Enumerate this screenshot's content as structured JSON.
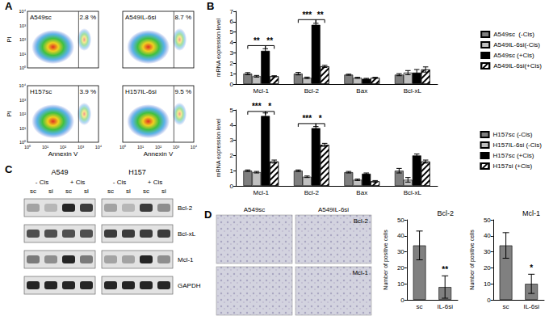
{
  "panel_labels": [
    "A",
    "B",
    "C",
    "D"
  ],
  "flow_cytometry": {
    "x_label": "Annexin V",
    "y_label": "PI",
    "tick_labels": [
      "10⁰",
      "10¹",
      "10²",
      "10³",
      "10⁴"
    ],
    "plots": [
      {
        "name": "A549sc",
        "percent": "2.8 %"
      },
      {
        "name": "A549IL-6si",
        "percent": "8.7 %"
      },
      {
        "name": "H157sc",
        "percent": "3.9 %"
      },
      {
        "name": "H157IL-6si",
        "percent": "9.5 %"
      }
    ]
  },
  "chart_data": [
    {
      "type": "bar",
      "y_label": "mRNA expression level",
      "categories": [
        "Mcl-1",
        "Bcl-2",
        "Bax",
        "Bcl-xL"
      ],
      "series": [
        {
          "name": "A549sc  (-Cis)",
          "color": "#7f7f7f",
          "values": [
            1.0,
            1.0,
            0.9,
            0.9
          ],
          "errors": [
            0.1,
            0.12,
            0.05,
            0.1
          ]
        },
        {
          "name": "A549IL-6si(-Cis)",
          "color": "#c0c0c0",
          "values": [
            0.75,
            0.6,
            0.6,
            1.1
          ],
          "errors": [
            0.08,
            0.07,
            0.05,
            0.2
          ]
        },
        {
          "name": "A549sc (+Cis)",
          "color": "#000000",
          "values": [
            3.2,
            5.7,
            0.5,
            1.1
          ],
          "errors": [
            0.2,
            0.15,
            0.05,
            0.3
          ]
        },
        {
          "name": "A549IL-6si(+Cis)",
          "color": "#ffffff",
          "values": [
            0.75,
            1.7,
            0.6,
            1.4
          ],
          "errors": [
            0.05,
            0.1,
            0.05,
            0.25
          ]
        }
      ],
      "ylim": [
        0,
        7
      ],
      "yticks": [
        0,
        1,
        2,
        3,
        4,
        5,
        6,
        7
      ],
      "grid": false,
      "legend": "right",
      "annotations": [
        {
          "category": "Mcl-1",
          "from": "A549sc  (-Cis)",
          "to": "A549sc (+Cis)",
          "y": 3.7,
          "text": "**"
        },
        {
          "category": "Mcl-1",
          "from": "A549sc (+Cis)",
          "to": "A549IL-6si(+Cis)",
          "y": 3.7,
          "text": "**"
        },
        {
          "category": "Bcl-2",
          "from": "A549sc  (-Cis)",
          "to": "A549sc (+Cis)",
          "y": 6.2,
          "text": "***"
        },
        {
          "category": "Bcl-2",
          "from": "A549sc (+Cis)",
          "to": "A549IL-6si(+Cis)",
          "y": 6.2,
          "text": "**"
        }
      ]
    },
    {
      "type": "bar",
      "y_label": "mRNA expression level",
      "categories": [
        "Mcl-1",
        "Bcl-2",
        "Bax",
        "Bcl-xL"
      ],
      "series": [
        {
          "name": "H157sc (-Cis)",
          "color": "#7f7f7f",
          "values": [
            1.0,
            1.0,
            0.9,
            1.0
          ],
          "errors": [
            0.05,
            0.05,
            0.05,
            0.15
          ]
        },
        {
          "name": "H157IL-6si (-Cis)",
          "color": "#c0c0c0",
          "values": [
            0.9,
            0.6,
            0.4,
            0.4
          ],
          "errors": [
            0.05,
            0.05,
            0.05,
            0.15
          ]
        },
        {
          "name": "H157sc (+Cis)",
          "color": "#000000",
          "values": [
            4.6,
            3.8,
            0.8,
            2.0
          ],
          "errors": [
            0.2,
            0.1,
            0.05,
            0.1
          ]
        },
        {
          "name": "H157si (+Cis)",
          "color": "#ffffff",
          "values": [
            1.6,
            2.7,
            0.3,
            1.6
          ],
          "errors": [
            0.1,
            0.1,
            0.05,
            0.1
          ]
        }
      ],
      "ylim": [
        0,
        5
      ],
      "yticks": [
        0,
        1,
        2,
        3,
        4,
        5
      ],
      "grid": false,
      "legend": "right",
      "annotations": [
        {
          "category": "Mcl-1",
          "from": "H157sc (-Cis)",
          "to": "H157sc (+Cis)",
          "y": 4.9,
          "text": "***"
        },
        {
          "category": "Mcl-1",
          "from": "H157sc (+Cis)",
          "to": "H157si (+Cis)",
          "y": 4.9,
          "text": "*"
        },
        {
          "category": "Bcl-2",
          "from": "H157sc (-Cis)",
          "to": "H157sc (+Cis)",
          "y": 4.1,
          "text": "***"
        },
        {
          "category": "Bcl-2",
          "from": "H157sc (+Cis)",
          "to": "H157si (+Cis)",
          "y": 4.1,
          "text": "*"
        }
      ]
    },
    {
      "type": "bar",
      "title": "Bcl-2",
      "y_label": "Number of positive cells",
      "categories": [
        "sc",
        "IL-6si"
      ],
      "series": [
        {
          "color": "#808080",
          "values": [
            34,
            8
          ],
          "errors": [
            9,
            7
          ]
        }
      ],
      "ylim": [
        0,
        50
      ],
      "yticks": [
        0,
        10,
        20,
        30,
        40,
        50
      ],
      "grid": false,
      "annotations": [
        {
          "category": "IL-6si",
          "y": 16,
          "text": "**"
        }
      ]
    },
    {
      "type": "bar",
      "title": "Mcl-1",
      "y_label": "Number of positive cells",
      "categories": [
        "sc",
        "IL-6si"
      ],
      "series": [
        {
          "color": "#808080",
          "values": [
            34,
            10
          ],
          "errors": [
            8,
            6
          ]
        }
      ],
      "ylim": [
        0,
        50
      ],
      "yticks": [
        0,
        10,
        20,
        30,
        40,
        50
      ],
      "grid": false,
      "annotations": [
        {
          "category": "IL-6si",
          "y": 17,
          "text": "*"
        }
      ]
    }
  ],
  "western_blot": {
    "cell_lines": [
      "A549",
      "H157"
    ],
    "conditions": [
      "- Cis",
      "+ Cis"
    ],
    "lanes": [
      "sc",
      "si",
      "sc",
      "si"
    ],
    "rows": [
      {
        "label": "Bcl-2",
        "intensity": [
          0.3,
          0.2,
          0.9,
          0.8,
          0.3,
          0.2,
          0.8,
          0.4
        ]
      },
      {
        "label": "Bcl-xL",
        "intensity": [
          0.7,
          0.7,
          0.7,
          0.7,
          0.8,
          0.8,
          0.8,
          0.8
        ]
      },
      {
        "label": "Mcl-1",
        "intensity": [
          0.5,
          0.4,
          0.9,
          0.5,
          0.3,
          0.3,
          0.9,
          0.4
        ]
      },
      {
        "label": "GAPDH",
        "intensity": [
          0.9,
          0.9,
          0.9,
          0.9,
          0.9,
          0.9,
          0.9,
          0.9
        ]
      }
    ]
  },
  "ihc": {
    "columns": [
      "A549sc",
      "A549IL-6si"
    ],
    "rows": [
      "Bcl-2",
      "Mcl-1"
    ]
  }
}
